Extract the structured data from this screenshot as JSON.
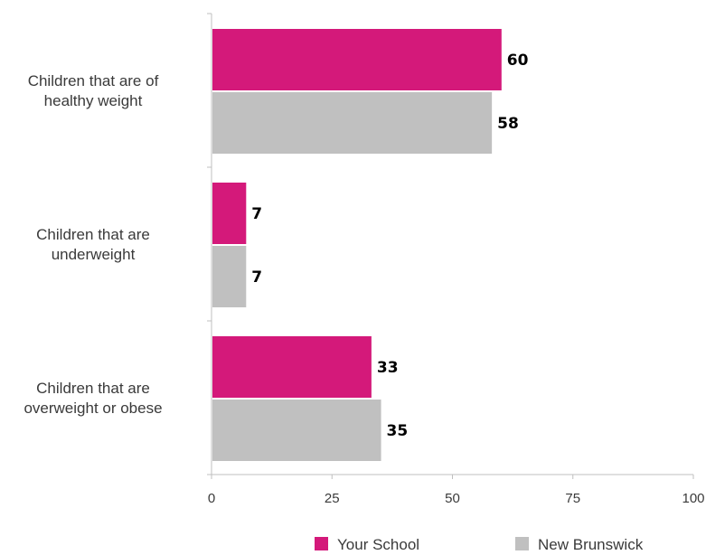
{
  "chart_data": {
    "type": "bar",
    "orientation": "horizontal",
    "categories": [
      [
        "Children that are of",
        "healthy weight"
      ],
      [
        "Children that are",
        "underweight"
      ],
      [
        "Children that are",
        "overweight or obese"
      ]
    ],
    "series": [
      {
        "name": "Your School",
        "color": "#d4197a",
        "values": [
          60,
          7,
          33
        ]
      },
      {
        "name": "New Brunswick",
        "color": "#c0c0c0",
        "values": [
          58,
          7,
          35
        ]
      }
    ],
    "xlim": [
      0,
      100
    ],
    "xticks": [
      0,
      25,
      50,
      75,
      100
    ],
    "grid": false,
    "legend_position": "bottom"
  }
}
